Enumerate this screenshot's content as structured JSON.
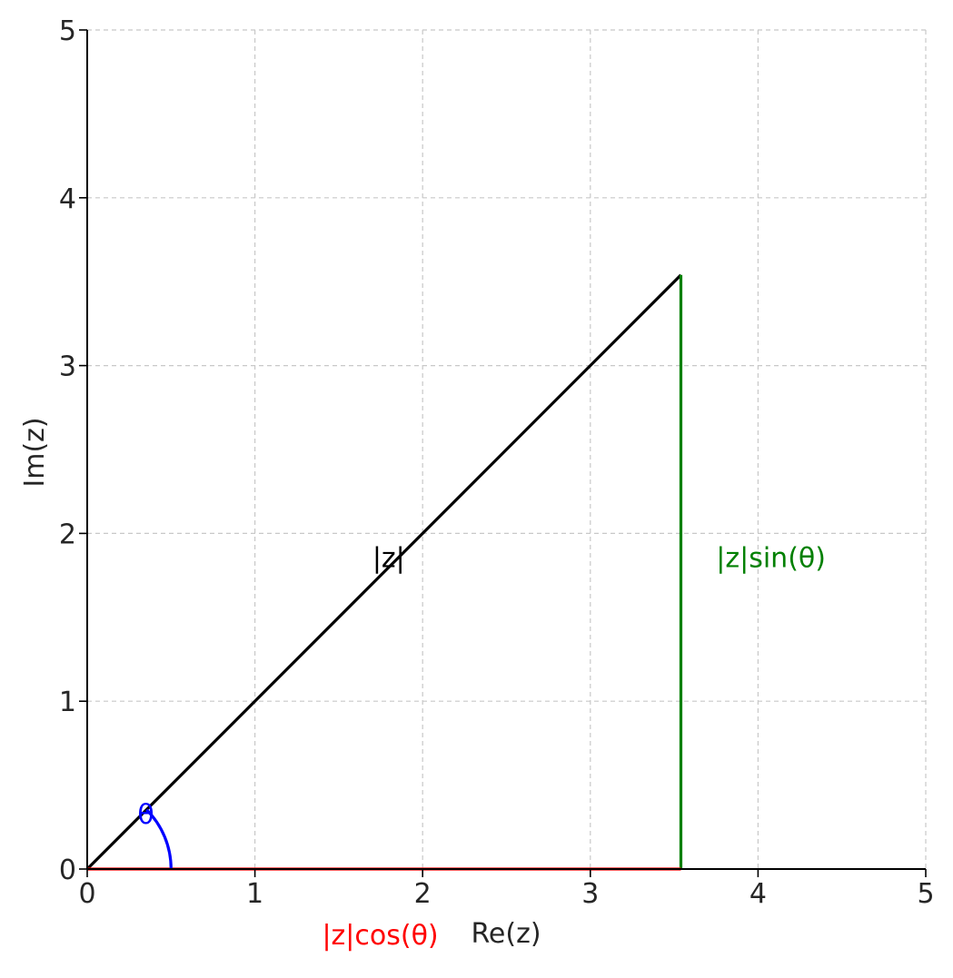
{
  "chart_data": {
    "type": "line",
    "title": "",
    "xlabel": "Re(z)",
    "ylabel": "Im(z)",
    "xlim": [
      0,
      5
    ],
    "ylim": [
      0,
      5
    ],
    "xticks": [
      "0",
      "1",
      "2",
      "3",
      "4",
      "5"
    ],
    "yticks": [
      "0",
      "1",
      "2",
      "3",
      "4",
      "5"
    ],
    "grid": true,
    "legend": "none",
    "series": [
      {
        "role": "vector",
        "color": "#000000",
        "x": [
          0,
          3.54
        ],
        "y": [
          0,
          3.54
        ]
      },
      {
        "role": "imaginary-part",
        "color": "#008000",
        "x": [
          3.54,
          3.54
        ],
        "y": [
          0,
          3.54
        ]
      },
      {
        "role": "real-part",
        "color": "#ff0000",
        "x": [
          0,
          3.54
        ],
        "y": [
          0,
          0
        ]
      },
      {
        "role": "angle-arc",
        "color": "#0000ff",
        "radius": 0.5,
        "theta_degrees": [
          0,
          45
        ]
      }
    ],
    "annotations": [
      {
        "text": "|z|",
        "x": 1.7,
        "y": 1.8,
        "color": "#000000"
      },
      {
        "text": "|z|sin(θ)",
        "x": 3.75,
        "y": 1.8,
        "color": "#008000"
      },
      {
        "text": "|z|cos(θ)",
        "x": 1.4,
        "y": -0.45,
        "color": "#ff0000"
      },
      {
        "text": "θ",
        "x": 0.3,
        "y": 0.27,
        "color": "#0000ff"
      }
    ]
  }
}
